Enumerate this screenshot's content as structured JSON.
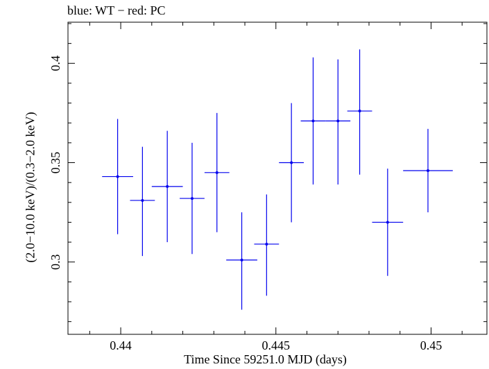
{
  "chart_data": {
    "type": "scatter",
    "title": "blue: WT − red: PC",
    "xlabel": "Time Since 59251.0 MJD (days)",
    "ylabel": "(2.0−10.0 keV)/(0.3−2.0 keV)",
    "xlim": [
      0.4383,
      0.4518
    ],
    "ylim": [
      0.2636,
      0.4207
    ],
    "x_ticks": [
      "0.44",
      "0.445",
      "0.45"
    ],
    "y_ticks": [
      "0.3",
      "0.35",
      "0.4"
    ],
    "grid": false,
    "color": "#0000ee",
    "series": [
      {
        "points": [
          {
            "x": 0.4399,
            "xerr": 0.0005,
            "y": 0.343,
            "y_lo": 0.314,
            "y_hi": 0.372
          },
          {
            "x": 0.4407,
            "xerr": 0.0004,
            "y": 0.331,
            "y_lo": 0.303,
            "y_hi": 0.358
          },
          {
            "x": 0.4415,
            "xerr": 0.0005,
            "y": 0.338,
            "y_lo": 0.31,
            "y_hi": 0.366
          },
          {
            "x": 0.4423,
            "xerr": 0.0004,
            "y": 0.332,
            "y_lo": 0.304,
            "y_hi": 0.36
          },
          {
            "x": 0.4431,
            "xerr": 0.0004,
            "y": 0.345,
            "y_lo": 0.315,
            "y_hi": 0.375
          },
          {
            "x": 0.4439,
            "xerr": 0.0005,
            "y": 0.301,
            "y_lo": 0.276,
            "y_hi": 0.325
          },
          {
            "x": 0.4447,
            "xerr": 0.0004,
            "y": 0.309,
            "y_lo": 0.283,
            "y_hi": 0.334
          },
          {
            "x": 0.4455,
            "xerr": 0.0004,
            "y": 0.35,
            "y_lo": 0.32,
            "y_hi": 0.38
          },
          {
            "x": 0.4462,
            "xerr": 0.0004,
            "y": 0.371,
            "y_lo": 0.339,
            "y_hi": 0.403
          },
          {
            "x": 0.447,
            "xerr": 0.0004,
            "y": 0.371,
            "y_lo": 0.339,
            "y_hi": 0.402
          },
          {
            "x": 0.4477,
            "xerr": 0.0004,
            "y": 0.376,
            "y_lo": 0.344,
            "y_hi": 0.407
          },
          {
            "x": 0.4486,
            "xerr": 0.0005,
            "y": 0.32,
            "y_lo": 0.293,
            "y_hi": 0.347
          },
          {
            "x": 0.4499,
            "xerr": 0.0008,
            "y": 0.346,
            "y_lo": 0.325,
            "y_hi": 0.367
          }
        ]
      }
    ]
  }
}
